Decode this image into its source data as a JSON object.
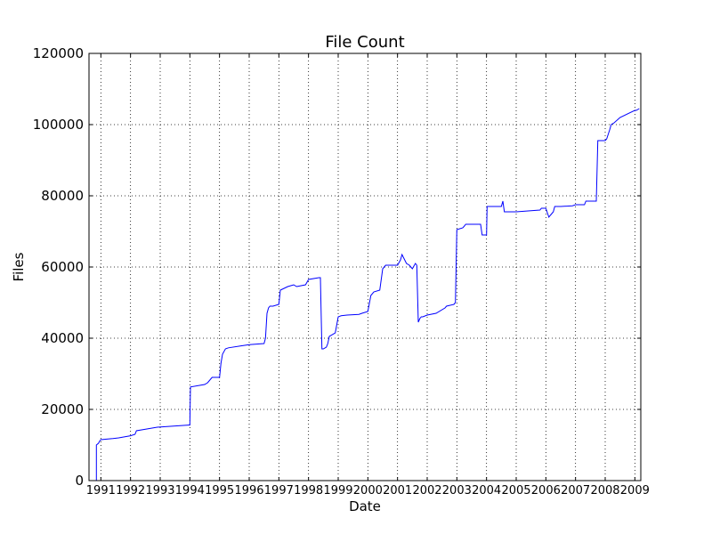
{
  "chart_data": {
    "type": "line",
    "title": "File Count",
    "xlabel": "Date",
    "ylabel": "Files",
    "xlim": [
      1990.6,
      2009.2
    ],
    "ylim": [
      0,
      120000
    ],
    "grid": true,
    "grid_style": "dotted",
    "line_color": "#0000ff",
    "yticks": [
      0,
      20000,
      40000,
      60000,
      80000,
      100000,
      120000
    ],
    "xticks": [
      {
        "value": 1991,
        "label": "1991"
      },
      {
        "value": 1992,
        "label": "1992"
      },
      {
        "value": 1993,
        "label": "1993"
      },
      {
        "value": 1994,
        "label": "1994"
      },
      {
        "value": 1995,
        "label": "1995"
      },
      {
        "value": 1996,
        "label": "1996"
      },
      {
        "value": 1997,
        "label": "1997"
      },
      {
        "value": 1998,
        "label": "1998"
      },
      {
        "value": 1999,
        "label": "1999"
      },
      {
        "value": 2000,
        "label": "2000"
      },
      {
        "value": 2001,
        "label": "2001"
      },
      {
        "value": 2002,
        "label": "2002"
      },
      {
        "value": 2003,
        "label": "2003"
      },
      {
        "value": 2004,
        "label": "2004"
      },
      {
        "value": 2005,
        "label": "2005"
      },
      {
        "value": 2006,
        "label": "2006"
      },
      {
        "value": 2007,
        "label": "2007"
      },
      {
        "value": 2008,
        "label": "2008"
      },
      {
        "value": 2009,
        "label": "2009"
      }
    ],
    "series": [
      {
        "x": [
          1990.78,
          1990.85,
          1990.85,
          1990.92,
          1990.95,
          1991.0,
          1991.4,
          1991.6,
          1992.0,
          1992.15,
          1992.2,
          1992.55,
          1992.9,
          1993.95,
          1994.0,
          1994.02,
          1994.5,
          1994.6,
          1994.75,
          1995.0,
          1995.05,
          1995.1,
          1995.2,
          1995.3,
          1995.7,
          1996.0,
          1996.5,
          1996.55,
          1996.6,
          1996.65,
          1996.7,
          1996.8,
          1997.0,
          1997.05,
          1997.3,
          1997.5,
          1997.6,
          1997.9,
          1998.0,
          1998.35,
          1998.4,
          1998.45,
          1998.5,
          1998.6,
          1998.65,
          1998.7,
          1998.9,
          1999.0,
          1999.1,
          1999.3,
          1999.7,
          1999.8,
          2000.0,
          2000.1,
          2000.2,
          2000.4,
          2000.5,
          2000.6,
          2000.8,
          2001.0,
          2001.1,
          2001.15,
          2001.3,
          2001.4,
          2001.5,
          2001.6,
          2001.65,
          2001.7,
          2001.75,
          2001.8,
          2001.85,
          2002.0,
          2002.3,
          2002.6,
          2002.65,
          2002.9,
          2002.95,
          2003.0,
          2003.2,
          2003.25,
          2003.3,
          2003.35,
          2003.5,
          2003.8,
          2003.85,
          2004.0,
          2004.02,
          2004.5,
          2004.55,
          2004.6,
          2004.7,
          2005.0,
          2005.5,
          2005.8,
          2005.85,
          2006.0,
          2006.1,
          2006.15,
          2006.25,
          2006.3,
          2006.4,
          2006.5,
          2006.9,
          2007.0,
          2007.3,
          2007.35,
          2007.6,
          2007.7,
          2007.75,
          2008.0,
          2008.05,
          2008.15,
          2008.2,
          2008.3,
          2008.5,
          2009.0,
          2009.05,
          2009.15
        ],
        "y": [
          0,
          0,
          10000,
          10500,
          11000,
          11500,
          11800,
          12000,
          12600,
          13000,
          14000,
          14500,
          15000,
          15600,
          15600,
          26300,
          27000,
          27500,
          29000,
          29000,
          33000,
          35500,
          37000,
          37300,
          37800,
          38200,
          38500,
          40000,
          47000,
          48500,
          49000,
          49000,
          49500,
          53500,
          54500,
          55000,
          54500,
          55000,
          56500,
          57000,
          57000,
          37000,
          37000,
          37500,
          38500,
          40500,
          41500,
          46000,
          46300,
          46500,
          46700,
          47000,
          47500,
          52000,
          53000,
          53500,
          59500,
          60500,
          60500,
          60500,
          62000,
          63500,
          61000,
          60500,
          59500,
          61000,
          60500,
          44500,
          45500,
          46000,
          46000,
          46500,
          47000,
          48500,
          49000,
          49500,
          50000,
          70500,
          71000,
          71500,
          72000,
          72000,
          72000,
          72000,
          69000,
          69000,
          77000,
          77000,
          78500,
          75500,
          75500,
          75500,
          75800,
          76000,
          76500,
          76500,
          74000,
          74500,
          75500,
          77000,
          77000,
          77000,
          77200,
          77500,
          77500,
          78500,
          78500,
          78500,
          95500,
          95500,
          96000,
          98500,
          100000,
          100500,
          102000,
          104000,
          104000,
          104500
        ]
      }
    ]
  }
}
